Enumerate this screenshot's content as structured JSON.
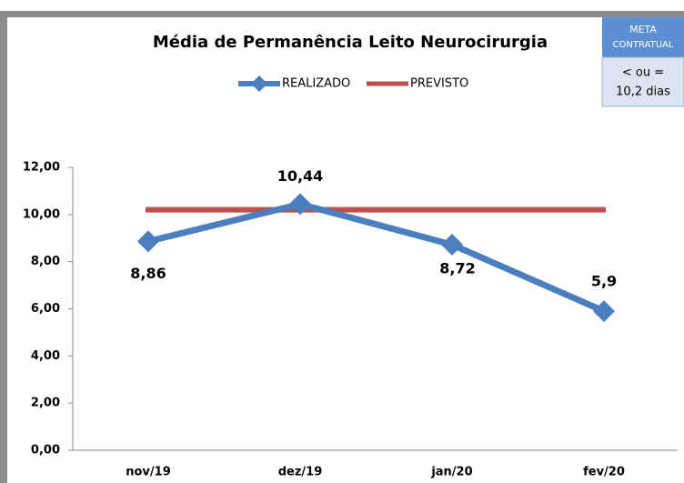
{
  "chart_data": {
    "type": "line",
    "title": "Média de Permanência Leito Neurocirurgia",
    "categories": [
      "nov/19",
      "dez/19",
      "jan/20",
      "fev/20"
    ],
    "series": [
      {
        "name": "REALIZADO",
        "color": "#4a7ebf",
        "values": [
          8.86,
          10.44,
          8.72,
          5.9
        ],
        "value_labels": [
          "8,86",
          "10,44",
          "8,72",
          "5,9"
        ]
      },
      {
        "name": "PREVISTO",
        "color": "#c0504d",
        "values": [
          10.2,
          10.2,
          10.2,
          10.2
        ]
      }
    ],
    "ylim": [
      0,
      12
    ],
    "yticks": [
      {
        "value": 0,
        "label": "0,00"
      },
      {
        "value": 2,
        "label": "2,00"
      },
      {
        "value": 4,
        "label": "4,00"
      },
      {
        "value": 6,
        "label": "6,00"
      },
      {
        "value": 8,
        "label": "8,00"
      },
      {
        "value": 10,
        "label": "10,00"
      },
      {
        "value": 12,
        "label": "12,00"
      }
    ],
    "legend": "top",
    "meta_box": {
      "title_lines": [
        "META",
        "CONTRATUAL"
      ],
      "text_lines": [
        "< ou =",
        "10,2 dias"
      ]
    }
  }
}
